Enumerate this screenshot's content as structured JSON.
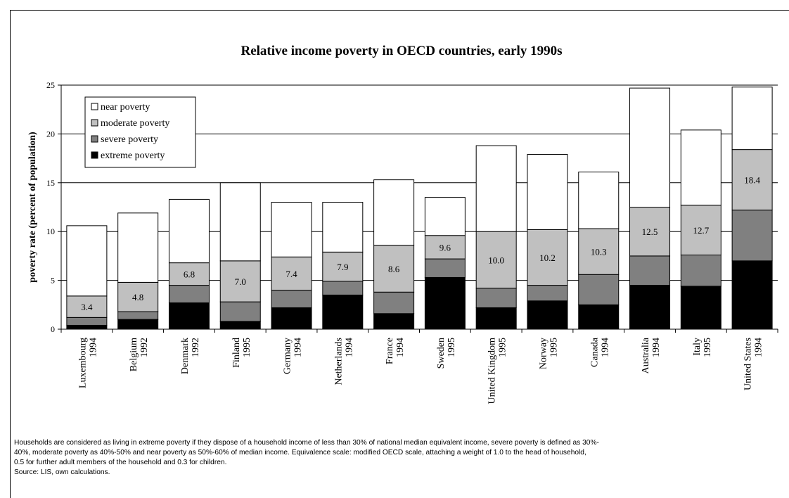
{
  "chart_data": {
    "type": "bar",
    "stacked": true,
    "title": "Relative income poverty in OECD countries, early 1990s",
    "xlabel": "",
    "ylabel": "poverty rate (percent of population)",
    "ylim": [
      0,
      25
    ],
    "yticks": [
      "0",
      "5",
      "10",
      "15",
      "20",
      "25"
    ],
    "grid": true,
    "legend_position": "top-left",
    "categories": [
      {
        "country": "Luxembourg",
        "year": "1994"
      },
      {
        "country": "Belgium",
        "year": "1992"
      },
      {
        "country": "Denmark",
        "year": "1992"
      },
      {
        "country": "Finland",
        "year": "1995"
      },
      {
        "country": "Germany",
        "year": "1994"
      },
      {
        "country": "Netherlands",
        "year": "1994"
      },
      {
        "country": "France",
        "year": "1994"
      },
      {
        "country": "Sweden",
        "year": "1995"
      },
      {
        "country": "United Kingdom",
        "year": "1995"
      },
      {
        "country": "Norway",
        "year": "1995"
      },
      {
        "country": "Canada",
        "year": "1994"
      },
      {
        "country": "Australia",
        "year": "1994"
      },
      {
        "country": "Italy",
        "year": "1995"
      },
      {
        "country": "United States",
        "year": "1994"
      }
    ],
    "series": [
      {
        "name": "extreme poverty",
        "color": "#000000",
        "values": [
          0.4,
          1.0,
          2.7,
          0.8,
          2.2,
          3.5,
          1.6,
          5.3,
          2.2,
          2.9,
          2.5,
          4.5,
          4.4,
          7.0
        ]
      },
      {
        "name": "severe poverty",
        "color": "#808080",
        "values": [
          0.8,
          0.8,
          1.8,
          2.0,
          1.8,
          1.4,
          2.2,
          1.9,
          2.0,
          1.6,
          3.1,
          3.0,
          3.2,
          5.2
        ]
      },
      {
        "name": "moderate poverty",
        "color": "#c0c0c0",
        "values": [
          2.2,
          3.0,
          2.3,
          4.2,
          3.4,
          3.0,
          4.8,
          2.4,
          5.8,
          5.7,
          4.7,
          5.0,
          5.1,
          6.2
        ]
      },
      {
        "name": "near poverty",
        "color": "#ffffff",
        "values": [
          7.2,
          7.1,
          6.5,
          8.0,
          5.6,
          5.1,
          6.7,
          3.9,
          8.8,
          7.7,
          5.8,
          12.2,
          7.7,
          6.4
        ]
      }
    ],
    "data_labels": [
      "3.4",
      "4.8",
      "6.8",
      "7.0",
      "7.4",
      "7.9",
      "8.6",
      "9.6",
      "10.0",
      "10.2",
      "10.3",
      "12.5",
      "12.7",
      "18.4"
    ],
    "legend_order": [
      "near poverty",
      "moderate poverty",
      "severe poverty",
      "extreme poverty"
    ]
  },
  "footnote": {
    "lines": [
      "Households are considered as living in extreme poverty if they dispose of a household income of less than 30% of national median equivalent income, severe poverty is defined as 30%-",
      "40%, moderate poverty as 40%-50% and near poverty as 50%-60% of median income. Equivalence scale:  modified OECD scale, attaching a weight of 1.0 to the head of household,",
      "0.5 for further adult members of the household and 0.3 for children.",
      "Source: LIS, own calculations."
    ]
  }
}
